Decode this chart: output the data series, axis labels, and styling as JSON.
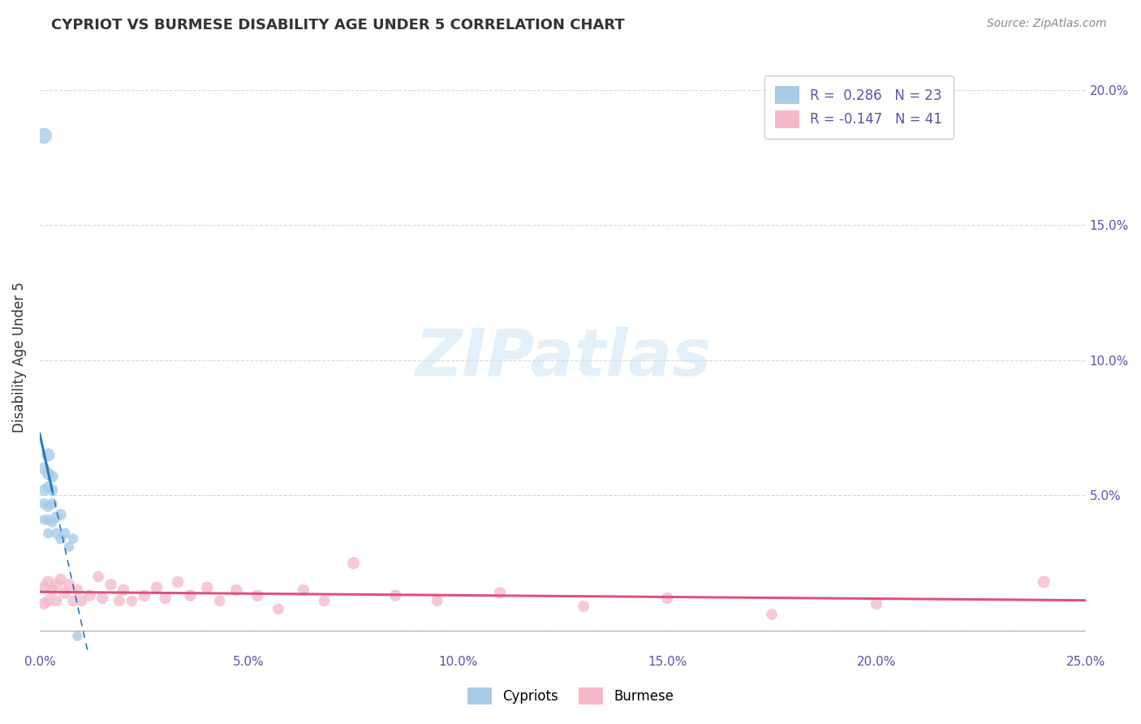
{
  "title": "CYPRIOT VS BURMESE DISABILITY AGE UNDER 5 CORRELATION CHART",
  "source": "Source: ZipAtlas.com",
  "ylabel": "Disability Age Under 5",
  "xlim": [
    0.0,
    0.25
  ],
  "ylim": [
    -0.008,
    0.21
  ],
  "xticks": [
    0.0,
    0.05,
    0.1,
    0.15,
    0.2,
    0.25
  ],
  "yticks": [
    0.0,
    0.05,
    0.1,
    0.15,
    0.2
  ],
  "xtick_labels": [
    "0.0%",
    "5.0%",
    "10.0%",
    "15.0%",
    "20.0%",
    "25.0%"
  ],
  "ytick_labels_right": [
    "",
    "5.0%",
    "10.0%",
    "15.0%",
    "20.0%"
  ],
  "cypriot_color": "#a8cce8",
  "burmese_color": "#f4b8c8",
  "cypriot_line_color": "#2878c0",
  "burmese_line_color": "#e0507a",
  "cypriot_R": 0.286,
  "cypriot_N": 23,
  "burmese_R": -0.147,
  "burmese_N": 41,
  "background_color": "#ffffff",
  "grid_color": "#cccccc",
  "tick_color": "#5555aa",
  "cypriot_x": [
    0.001,
    0.001,
    0.001,
    0.001,
    0.001,
    0.002,
    0.002,
    0.002,
    0.002,
    0.002,
    0.002,
    0.003,
    0.003,
    0.003,
    0.003,
    0.004,
    0.004,
    0.005,
    0.005,
    0.006,
    0.007,
    0.008,
    0.009
  ],
  "cypriot_y": [
    0.183,
    0.06,
    0.052,
    0.047,
    0.041,
    0.065,
    0.058,
    0.053,
    0.046,
    0.041,
    0.036,
    0.057,
    0.052,
    0.047,
    0.04,
    0.042,
    0.036,
    0.043,
    0.034,
    0.036,
    0.031,
    0.034,
    -0.002
  ],
  "cypriot_sizes": [
    200,
    120,
    100,
    90,
    80,
    140,
    120,
    110,
    100,
    90,
    80,
    110,
    100,
    90,
    80,
    100,
    90,
    100,
    90,
    90,
    80,
    80,
    80
  ],
  "burmese_x": [
    0.001,
    0.001,
    0.002,
    0.002,
    0.003,
    0.004,
    0.004,
    0.005,
    0.006,
    0.007,
    0.008,
    0.009,
    0.01,
    0.012,
    0.014,
    0.015,
    0.017,
    0.019,
    0.02,
    0.022,
    0.025,
    0.028,
    0.03,
    0.033,
    0.036,
    0.04,
    0.043,
    0.047,
    0.052,
    0.057,
    0.063,
    0.068,
    0.075,
    0.085,
    0.095,
    0.11,
    0.13,
    0.15,
    0.175,
    0.2,
    0.24
  ],
  "burmese_y": [
    0.016,
    0.01,
    0.018,
    0.011,
    0.015,
    0.017,
    0.011,
    0.019,
    0.014,
    0.017,
    0.011,
    0.015,
    0.011,
    0.013,
    0.02,
    0.012,
    0.017,
    0.011,
    0.015,
    0.011,
    0.013,
    0.016,
    0.012,
    0.018,
    0.013,
    0.016,
    0.011,
    0.015,
    0.013,
    0.008,
    0.015,
    0.011,
    0.025,
    0.013,
    0.011,
    0.014,
    0.009,
    0.012,
    0.006,
    0.01,
    0.018
  ],
  "burmese_sizes": [
    120,
    110,
    120,
    110,
    110,
    110,
    100,
    110,
    110,
    110,
    100,
    110,
    100,
    110,
    100,
    110,
    110,
    100,
    110,
    100,
    110,
    110,
    110,
    110,
    110,
    110,
    100,
    110,
    110,
    100,
    110,
    100,
    120,
    110,
    100,
    110,
    100,
    110,
    100,
    110,
    120
  ],
  "legend_R_color": "#5555aa",
  "legend_N_color": "#5555aa"
}
